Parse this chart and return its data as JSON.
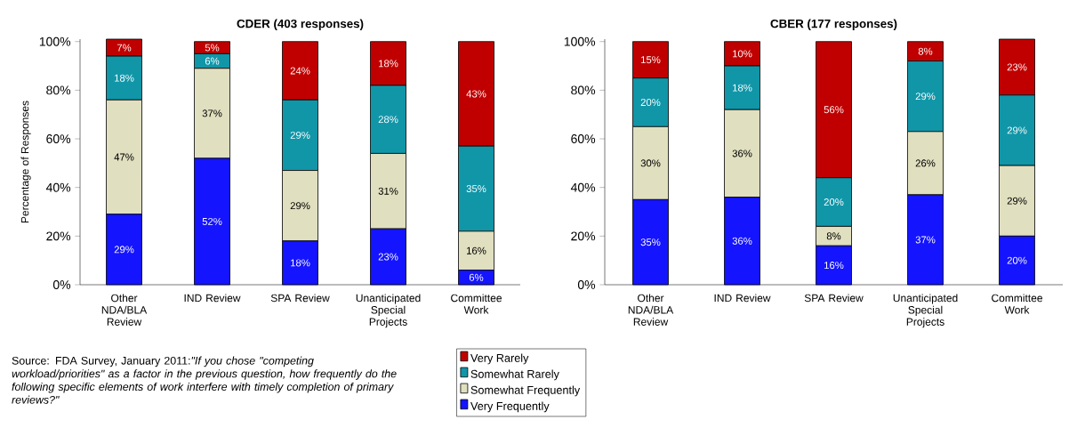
{
  "chart_data": [
    {
      "type": "bar",
      "stacked": true,
      "title": "CDER (403 responses)",
      "ylabel": "Percentage of Responses",
      "categories": [
        "Other NDA/BLA Review",
        "IND Review",
        "SPA Review",
        "Unanticipated Special Projects",
        "Committee Work"
      ],
      "ylim": [
        0,
        101
      ],
      "yticks": [
        {
          "value": 0,
          "label": "0%"
        },
        {
          "value": 20,
          "label": "20%"
        },
        {
          "value": 40,
          "label": "40%"
        },
        {
          "value": 60,
          "label": "60%"
        },
        {
          "value": 80,
          "label": "80%"
        },
        {
          "value": 100,
          "label": "100%"
        }
      ],
      "legend": "bottom",
      "grid": false,
      "series": [
        {
          "name": "Very Frequently",
          "color": "#1414ff",
          "values": [
            29,
            52,
            18,
            23,
            6
          ],
          "value_labels": [
            "29%",
            "52%",
            "18%",
            "23%",
            "6%"
          ]
        },
        {
          "name": "Somewhat Frequently",
          "color": "#e0dfbf",
          "values": [
            47,
            37,
            29,
            31,
            16
          ],
          "value_labels": [
            "47%",
            "37%",
            "29%",
            "31%",
            "16%"
          ]
        },
        {
          "name": "Somewhat Rarely",
          "color": "#1196a8",
          "values": [
            18,
            6,
            29,
            28,
            35
          ],
          "value_labels": [
            "18%",
            "6%",
            "29%",
            "28%",
            "35%"
          ]
        },
        {
          "name": "Very Rarely",
          "color": "#c00000",
          "values": [
            7,
            5,
            24,
            18,
            43
          ],
          "value_labels": [
            "7%",
            "5%",
            "24%",
            "18%",
            "43%"
          ]
        }
      ],
      "annotations": [
        "Source: FDA Survey, January 2011:*\"If you chose \"competing workload/priorities\" as a factor in the previous question, how frequently do the following specific elements of work interfere with timely completion of primary reviews?\"*"
      ]
    },
    {
      "type": "bar",
      "stacked": true,
      "title": "CBER (177 responses)",
      "categories": [
        "Other NDA/BLA Review",
        "IND Review",
        "SPA Review",
        "Unanticipated Special Projects",
        "Committee Work"
      ],
      "ylim": [
        0,
        101
      ],
      "yticks": [
        {
          "value": 0,
          "label": "0%"
        },
        {
          "value": 20,
          "label": "20%"
        },
        {
          "value": 40,
          "label": "40%"
        },
        {
          "value": 60,
          "label": "60%"
        },
        {
          "value": 80,
          "label": "80%"
        },
        {
          "value": 100,
          "label": "100%"
        }
      ],
      "legend": false,
      "grid": false,
      "series": [
        {
          "color": "#1414ff",
          "values": [
            35,
            36,
            16,
            37,
            20
          ],
          "value_labels": [
            "35%",
            "36%",
            "16%",
            "37%",
            "20%"
          ]
        },
        {
          "color": "#e0dfbf",
          "values": [
            30,
            36,
            8,
            26,
            29
          ],
          "value_labels": [
            "30%",
            "36%",
            "8%",
            "26%",
            "29%"
          ]
        },
        {
          "color": "#1196a8",
          "values": [
            20,
            18,
            20,
            29,
            29
          ],
          "value_labels": [
            "20%",
            "18%",
            "20%",
            "29%",
            "29%"
          ]
        },
        {
          "color": "#c00000",
          "values": [
            15,
            10,
            56,
            8,
            23
          ],
          "value_labels": [
            "15%",
            "10%",
            "56%",
            "8%",
            "23%"
          ]
        }
      ]
    }
  ]
}
